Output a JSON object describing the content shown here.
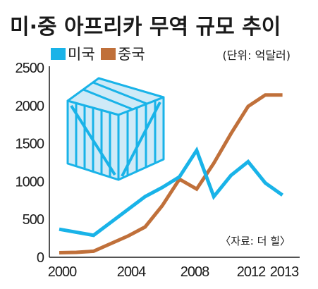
{
  "colors": {
    "usa": "#19b3e8",
    "china": "#c0703a",
    "crate_fill": "#cfeaf7",
    "crate_stroke": "#19b3e8",
    "axis": "#1a1a1a"
  },
  "chart_data": {
    "type": "line",
    "title": "미·중 아프리카 무역 규모 추이",
    "unit_note": "(단위: 억달러)",
    "source": "〈자료: 더 힐〉",
    "ylim": [
      0,
      2500
    ],
    "yticks": [
      0,
      500,
      1000,
      1500,
      2000,
      2500
    ],
    "xlim": [
      2000,
      2014
    ],
    "xticks": [
      2000,
      2004,
      2008,
      2012,
      2013
    ],
    "grid": false,
    "legend_position": "top-left",
    "series": [
      {
        "name": "미국",
        "color_key": "usa",
        "x": [
          2000,
          2002,
          2003,
          2005,
          2006,
          2007,
          2008,
          2009,
          2010,
          2011,
          2012,
          2013
        ],
        "values": [
          370,
          290,
          460,
          800,
          920,
          1060,
          1410,
          800,
          1080,
          1260,
          980,
          820
        ]
      },
      {
        "name": "중국",
        "color_key": "china",
        "x": [
          2000,
          2001,
          2002,
          2003,
          2004,
          2005,
          2006,
          2007,
          2008,
          2009,
          2010,
          2011,
          2012,
          2013
        ],
        "values": [
          60,
          65,
          80,
          180,
          280,
          400,
          680,
          1030,
          900,
          1240,
          1630,
          1990,
          2140,
          2140
        ]
      }
    ]
  }
}
